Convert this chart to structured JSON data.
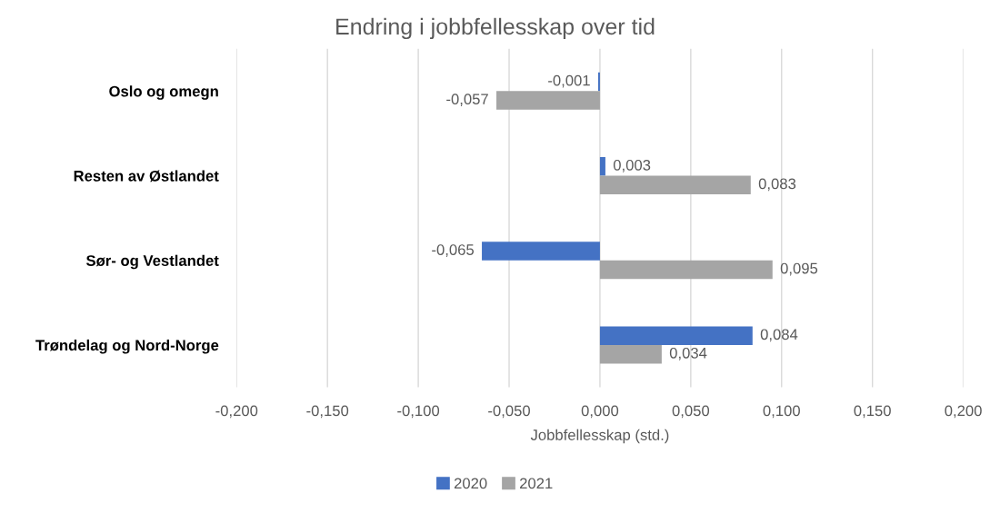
{
  "chart_data": {
    "type": "bar",
    "orientation": "horizontal",
    "title": "Endring i jobbfellesskap over tid",
    "xlabel": "Jobbfellesskap (std.)",
    "categories": [
      "Oslo og omegn",
      "Resten av Østlandet",
      "Sør- og Vestlandet",
      "Trøndelag og Nord-Norge"
    ],
    "series": [
      {
        "name": "2020",
        "color": "#4472c4",
        "values": [
          -0.001,
          0.003,
          -0.065,
          0.084
        ],
        "value_labels": [
          "-0,001",
          "0,003",
          "-0,065",
          "0,084"
        ]
      },
      {
        "name": "2021",
        "color": "#a5a5a5",
        "values": [
          -0.057,
          0.083,
          0.095,
          0.034
        ],
        "value_labels": [
          "-0,057",
          "0,083",
          "0,095",
          "0,034"
        ]
      }
    ],
    "xlim": [
      -0.2,
      0.2
    ],
    "xticks": [
      {
        "value": -0.2,
        "label": "-0,200"
      },
      {
        "value": -0.15,
        "label": "-0,150"
      },
      {
        "value": -0.1,
        "label": "-0,100"
      },
      {
        "value": -0.05,
        "label": "-0,050"
      },
      {
        "value": 0,
        "label": "0,000"
      },
      {
        "value": 0.05,
        "label": "0,050"
      },
      {
        "value": 0.1,
        "label": "0,100"
      },
      {
        "value": 0.15,
        "label": "0,150"
      },
      {
        "value": 0.2,
        "label": "0,200"
      }
    ],
    "grid": "x",
    "legend": "bottom"
  }
}
